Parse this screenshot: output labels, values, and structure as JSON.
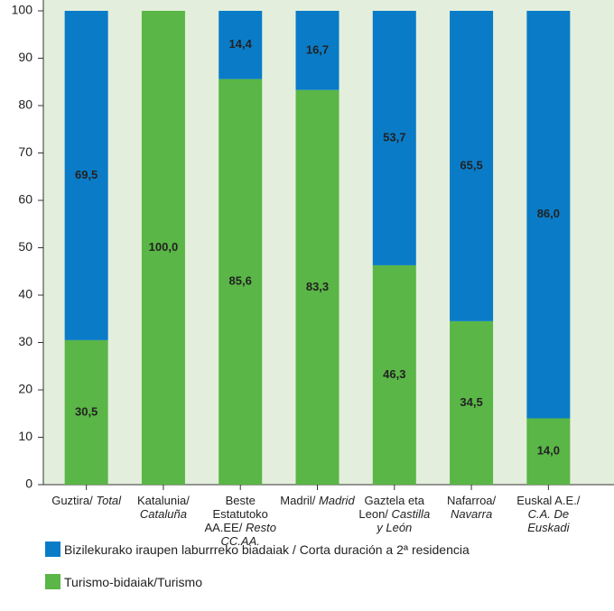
{
  "chart_data": {
    "type": "stacked_bar",
    "categories": [
      {
        "eu": "Guztira/",
        "es": "Total"
      },
      {
        "eu": "Katalunia/",
        "es": "Cataluña"
      },
      {
        "eu": "Beste Estatutoko AA.EE/",
        "es": "Resto CC.AA."
      },
      {
        "eu": "Madril/",
        "es": "Madrid"
      },
      {
        "eu": "Gaztela eta Leon/",
        "es": "Castilla y León"
      },
      {
        "eu": "Nafarroa/",
        "es": "Navarra"
      },
      {
        "eu": "Euskal A.E./",
        "es": "C.A. De Euskadi"
      }
    ],
    "series": [
      {
        "name": "Turismo-bidaiak/Turismo",
        "color": "#5ab646",
        "values": [
          30.5,
          100,
          85.6,
          83.3,
          46.3,
          34.5,
          14.0
        ],
        "value_labels": [
          "30,5",
          "100,0",
          "85,6",
          "83,3",
          "46,3",
          "34,5",
          "14,0"
        ]
      },
      {
        "name": "Bizilekurako iraupen laburrreko biadaiak / Corta duración a 2ª residencia",
        "color": "#0a7cc7",
        "values": [
          69.5,
          0,
          14.4,
          16.7,
          53.7,
          65.5,
          86.0
        ],
        "value_labels": [
          "69,5",
          null,
          "14,4",
          "16,7",
          "53,7",
          "65,5",
          "86,0"
        ]
      }
    ],
    "ylim": [
      0,
      100
    ],
    "yticks": [
      0,
      10,
      20,
      30,
      40,
      50,
      60,
      70,
      80,
      90,
      100
    ],
    "background": "#e3efdc"
  }
}
